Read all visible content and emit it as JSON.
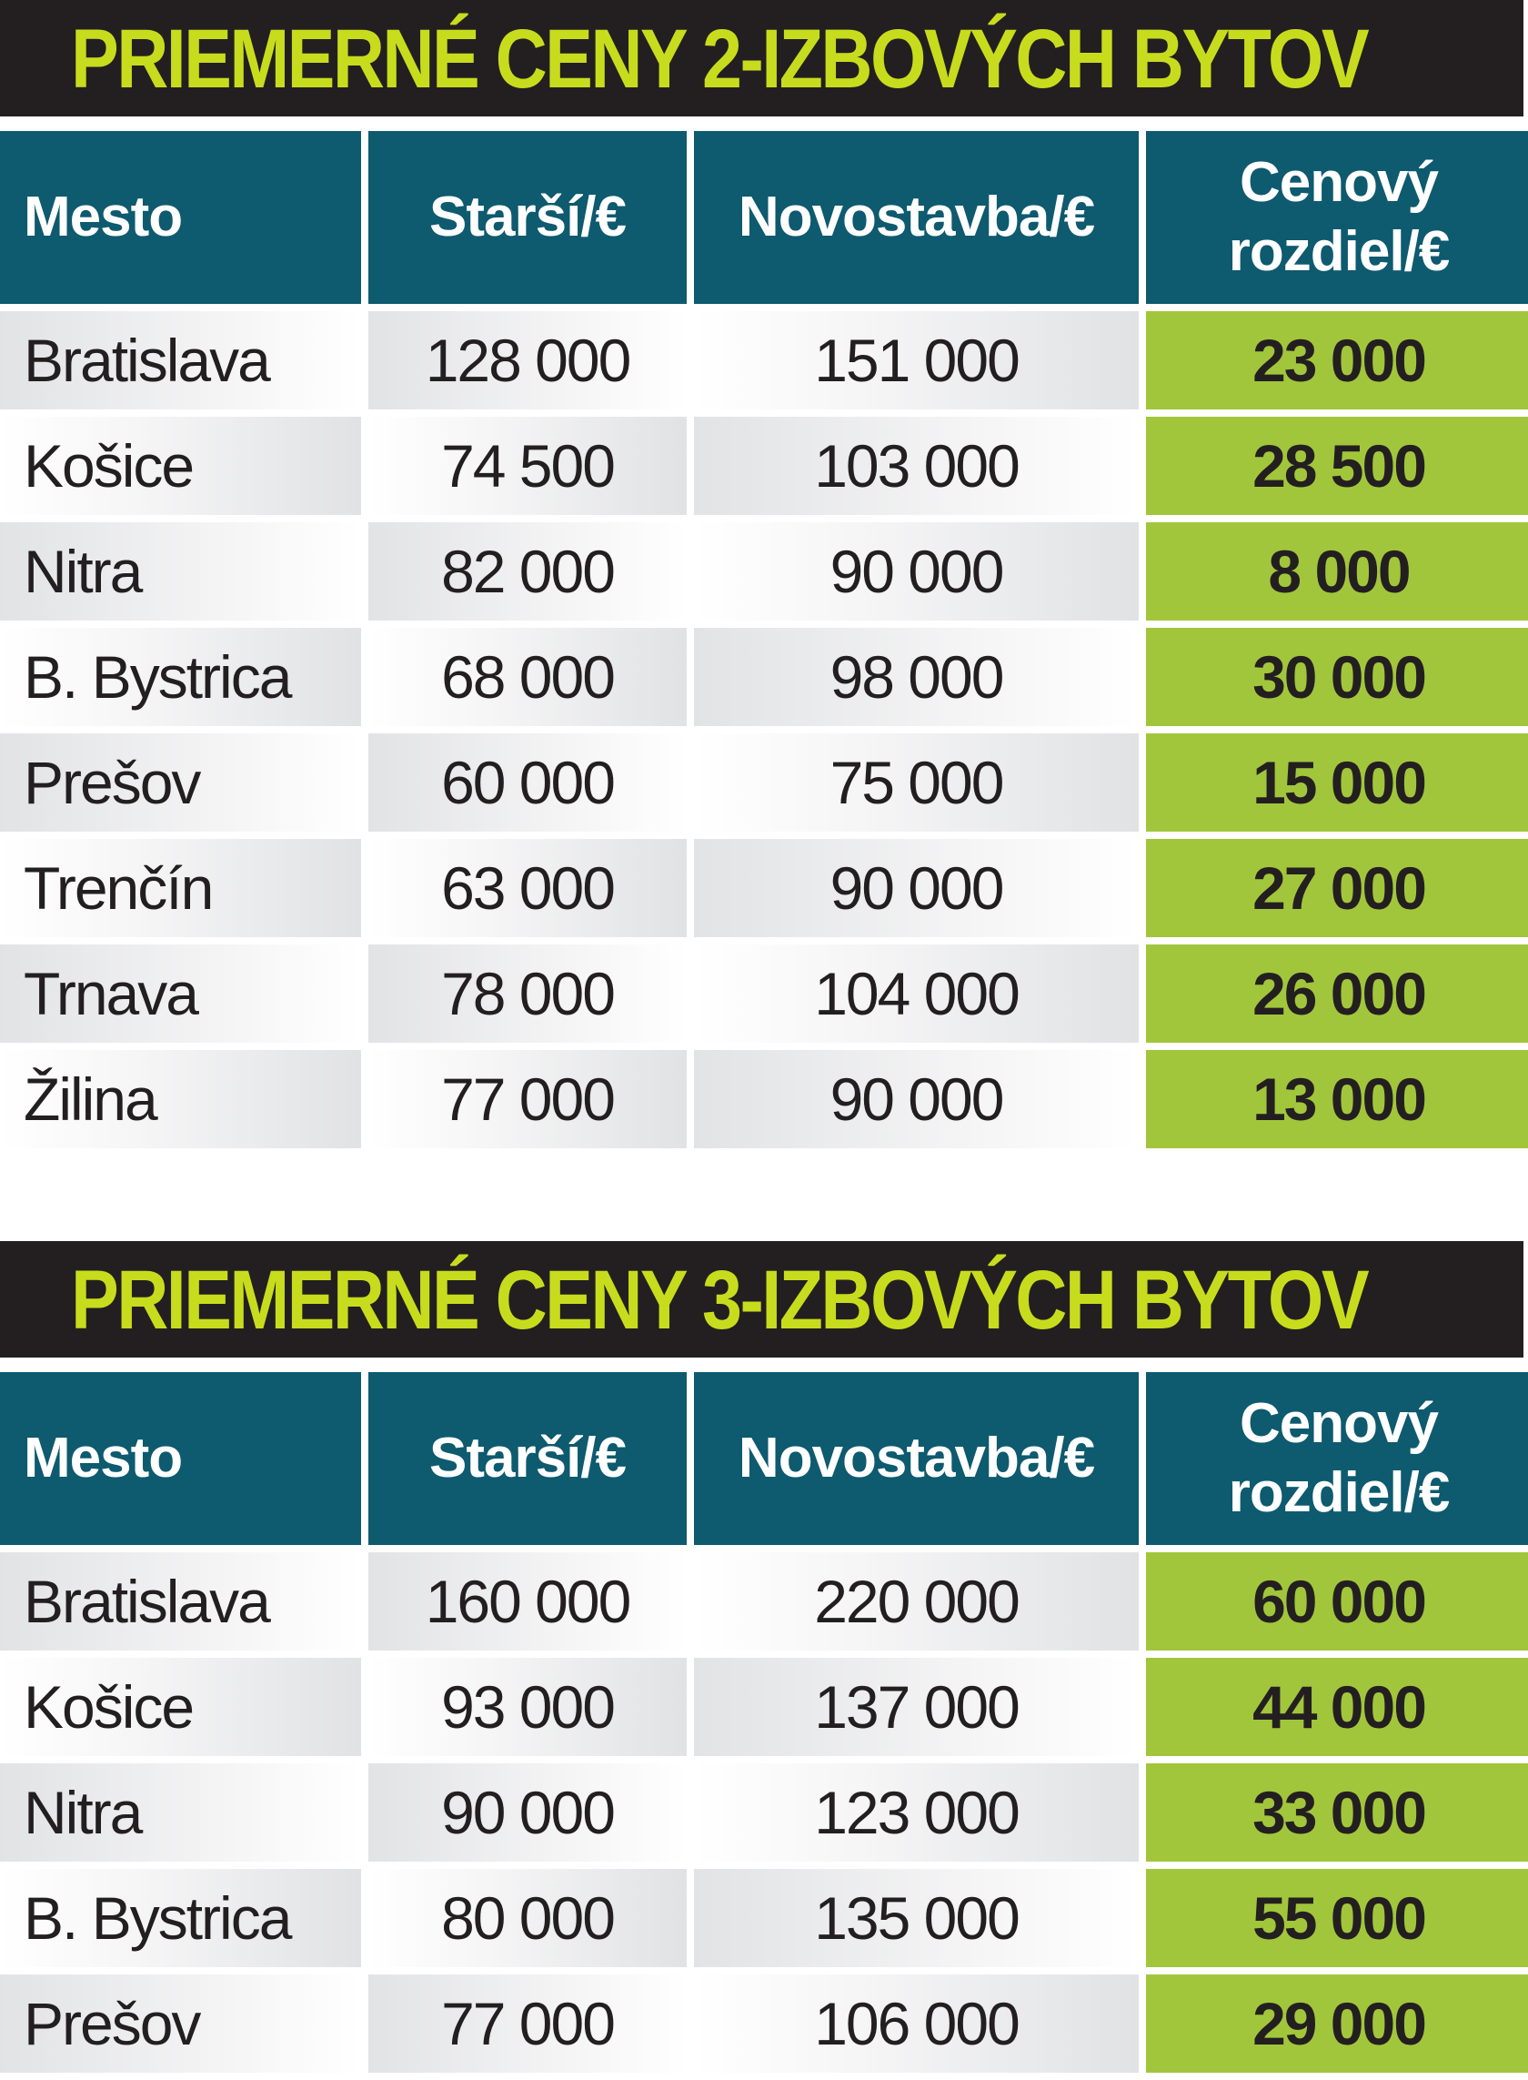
{
  "chart_data": [
    {
      "type": "table",
      "title": "PRIEMERNÉ CENY 2-IZBOVÝCH BYTOV",
      "columns": [
        "Mesto",
        "Starší/€",
        "Novostavba/€",
        "Cenový rozdiel/€"
      ],
      "rows": [
        {
          "city": "Bratislava",
          "older": "128 000",
          "new": "151 000",
          "diff": "23 000"
        },
        {
          "city": "Košice",
          "older": "74 500",
          "new": "103 000",
          "diff": "28 500"
        },
        {
          "city": "Nitra",
          "older": "82 000",
          "new": "90 000",
          "diff": "8 000"
        },
        {
          "city": "B. Bystrica",
          "older": "68 000",
          "new": "98 000",
          "diff": "30 000"
        },
        {
          "city": "Prešov",
          "older": "60 000",
          "new": "75 000",
          "diff": "15 000"
        },
        {
          "city": "Trenčín",
          "older": "63 000",
          "new": "90 000",
          "diff": "27 000"
        },
        {
          "city": "Trnava",
          "older": "78 000",
          "new": "104 000",
          "diff": "26 000"
        },
        {
          "city": "Žilina",
          "older": "77 000",
          "new": "90 000",
          "diff": "13 000"
        }
      ]
    },
    {
      "type": "table",
      "title": "PRIEMERNÉ CENY 3-IZBOVÝCH BYTOV",
      "columns": [
        "Mesto",
        "Starší/€",
        "Novostavba/€",
        "Cenový rozdiel/€"
      ],
      "rows": [
        {
          "city": "Bratislava",
          "older": "160 000",
          "new": "220 000",
          "diff": "60 000"
        },
        {
          "city": "Košice",
          "older": "93 000",
          "new": "137 000",
          "diff": "44 000"
        },
        {
          "city": "Nitra",
          "older": "90 000",
          "new": "123 000",
          "diff": "33 000"
        },
        {
          "city": "B. Bystrica",
          "older": "80 000",
          "new": "135 000",
          "diff": "55 000"
        },
        {
          "city": "Prešov",
          "older": "77 000",
          "new": "106 000",
          "diff": "29 000"
        }
      ]
    }
  ],
  "colors": {
    "title_bg": "#231f20",
    "title_text": "#c8dc1e",
    "header_bg": "#0e5a6f",
    "diff_bg": "#a2c63b"
  }
}
